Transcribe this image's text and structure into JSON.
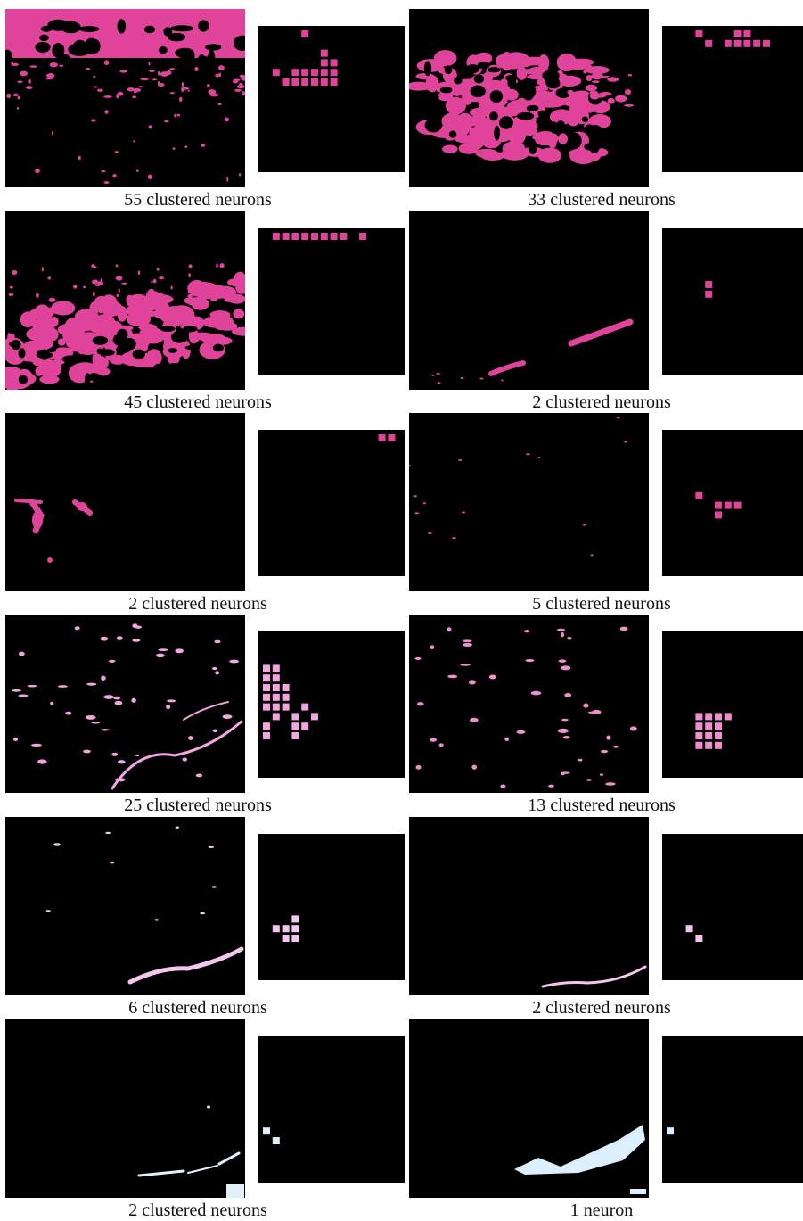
{
  "panels": [
    {
      "caption": "55 clustered neurons",
      "color": "#e0449a",
      "texture": "dense-top",
      "grid": [
        [
          4,
          0
        ],
        [
          6,
          2
        ],
        [
          6,
          3
        ],
        [
          7,
          3
        ],
        [
          1,
          4
        ],
        [
          3,
          4
        ],
        [
          4,
          4
        ],
        [
          5,
          4
        ],
        [
          6,
          4
        ],
        [
          7,
          4
        ],
        [
          2,
          5
        ],
        [
          3,
          5
        ],
        [
          4,
          5
        ],
        [
          5,
          5
        ],
        [
          6,
          5
        ],
        [
          7,
          5
        ]
      ]
    },
    {
      "caption": "33 clustered neurons",
      "color": "#e0449a",
      "texture": "dense-mid",
      "grid": [
        [
          3,
          0
        ],
        [
          7,
          0
        ],
        [
          8,
          0
        ],
        [
          4,
          1
        ],
        [
          6,
          1
        ],
        [
          7,
          1
        ],
        [
          8,
          1
        ],
        [
          9,
          1
        ],
        [
          10,
          1
        ]
      ]
    },
    {
      "caption": "45 clustered neurons",
      "color": "#e0449a",
      "texture": "dense-bottom",
      "grid": [
        [
          1,
          0
        ],
        [
          2,
          0
        ],
        [
          3,
          0
        ],
        [
          4,
          0
        ],
        [
          5,
          0
        ],
        [
          6,
          0
        ],
        [
          7,
          0
        ],
        [
          8,
          0
        ],
        [
          10,
          0
        ]
      ]
    },
    {
      "caption": "2 clustered neurons",
      "color": "#e0449a",
      "texture": "streaks",
      "grid": [
        [
          4,
          5
        ],
        [
          4,
          6
        ]
      ]
    },
    {
      "caption": "2 clustered neurons",
      "color": "#e0449a",
      "texture": "left-blob",
      "grid": [
        [
          12,
          0
        ],
        [
          13,
          0
        ]
      ]
    },
    {
      "caption": "5 clustered neurons",
      "color": "#e0449a",
      "texture": "sparse-dots",
      "grid": [
        [
          3,
          6
        ],
        [
          5,
          7
        ],
        [
          6,
          7
        ],
        [
          7,
          7
        ],
        [
          5,
          8
        ]
      ]
    },
    {
      "caption": "25 clustered neurons",
      "color": "#f2a5df",
      "texture": "specks-curve",
      "grid": [
        [
          0,
          3
        ],
        [
          1,
          3
        ],
        [
          0,
          4
        ],
        [
          1,
          4
        ],
        [
          0,
          5
        ],
        [
          1,
          5
        ],
        [
          2,
          5
        ],
        [
          0,
          6
        ],
        [
          1,
          6
        ],
        [
          2,
          6
        ],
        [
          0,
          7
        ],
        [
          1,
          7
        ],
        [
          2,
          7
        ],
        [
          4,
          7
        ],
        [
          1,
          8
        ],
        [
          3,
          8
        ],
        [
          5,
          8
        ],
        [
          0,
          9
        ],
        [
          3,
          9
        ],
        [
          4,
          9
        ],
        [
          0,
          10
        ],
        [
          3,
          10
        ]
      ]
    },
    {
      "caption": "13 clustered neurons",
      "color": "#f08fd0",
      "texture": "specks",
      "grid": [
        [
          3,
          8
        ],
        [
          4,
          8
        ],
        [
          5,
          8
        ],
        [
          6,
          8
        ],
        [
          3,
          9
        ],
        [
          4,
          9
        ],
        [
          5,
          9
        ],
        [
          3,
          10
        ],
        [
          4,
          10
        ],
        [
          5,
          10
        ],
        [
          3,
          11
        ],
        [
          4,
          11
        ],
        [
          5,
          11
        ]
      ]
    },
    {
      "caption": "6 clustered neurons",
      "color": "#f4c7ef",
      "texture": "wisp-right",
      "grid": [
        [
          3,
          8
        ],
        [
          1,
          9
        ],
        [
          2,
          9
        ],
        [
          3,
          9
        ],
        [
          2,
          10
        ],
        [
          3,
          10
        ]
      ]
    },
    {
      "caption": "2 clustered neurons",
      "color": "#f2c6ee",
      "texture": "wisp-bottom",
      "grid": [
        [
          2,
          9
        ],
        [
          3,
          10
        ]
      ]
    },
    {
      "caption": "2 clustered neurons",
      "color": "#e2f0fb",
      "texture": "white-streaks",
      "grid": [
        [
          0,
          9
        ],
        [
          1,
          10
        ]
      ]
    },
    {
      "caption": "1 neuron",
      "color": "#dcefff",
      "texture": "white-blob",
      "grid": [
        [
          0,
          9
        ]
      ]
    }
  ]
}
